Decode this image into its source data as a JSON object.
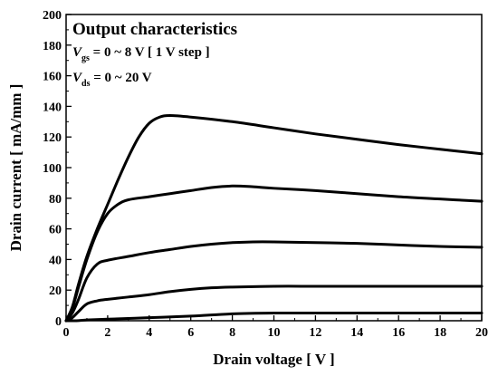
{
  "chart_data": {
    "type": "line",
    "title": "Output characteristics",
    "annotations": {
      "vgs_symbol": "V",
      "vgs_sub": "gs",
      "vgs_text": " = 0 ~ 8 V [ 1 V step ]",
      "vds_symbol": "V",
      "vds_sub": "ds",
      "vds_text": " = 0 ~ 20 V"
    },
    "xlabel": "Drain voltage [ V ]",
    "ylabel": "Drain current [ mA/mm ]",
    "xlim": [
      0,
      20
    ],
    "ylim": [
      0,
      200
    ],
    "xticks": [
      0,
      2,
      4,
      6,
      8,
      10,
      12,
      14,
      16,
      18,
      20
    ],
    "yticks": [
      0,
      20,
      40,
      60,
      80,
      100,
      120,
      140,
      160,
      180,
      200
    ],
    "grid": false,
    "series": [
      {
        "x": [
          0,
          0.5,
          1,
          2,
          4,
          6,
          8,
          10,
          12,
          14,
          16,
          18,
          20
        ],
        "y": [
          0,
          0,
          0.5,
          1,
          2,
          3,
          4.5,
          5,
          5,
          5,
          5,
          5,
          5
        ]
      },
      {
        "x": [
          0,
          0.3,
          0.6,
          1,
          1.5,
          2,
          3,
          4,
          5,
          6,
          7,
          8,
          10,
          12,
          14,
          16,
          18,
          20
        ],
        "y": [
          0,
          2,
          6,
          11,
          13,
          14,
          15.5,
          17,
          19,
          20.5,
          21.5,
          22,
          22.5,
          22.5,
          22.5,
          22.5,
          22.5,
          22.5
        ]
      },
      {
        "x": [
          0,
          0.3,
          0.6,
          1,
          1.5,
          2,
          3,
          4,
          5,
          6,
          7,
          8,
          9,
          10,
          12,
          14,
          16,
          18,
          20
        ],
        "y": [
          0,
          5,
          14,
          28,
          37,
          39.5,
          42,
          44.5,
          46.5,
          48.5,
          50,
          51,
          51.5,
          51.5,
          51,
          50.5,
          49.5,
          48.5,
          48
        ]
      },
      {
        "x": [
          0,
          0.3,
          0.6,
          1,
          1.5,
          2,
          2.5,
          3,
          4,
          5,
          6,
          7,
          8,
          9,
          10,
          12,
          14,
          16,
          18,
          20
        ],
        "y": [
          0,
          8,
          22,
          40,
          58,
          70,
          76,
          79,
          81,
          83,
          85,
          87,
          88,
          87.5,
          86.5,
          85,
          83,
          81,
          79.5,
          78
        ]
      },
      {
        "x": [
          0,
          0.3,
          0.6,
          1,
          1.5,
          2,
          2.5,
          3,
          3.5,
          4,
          4.5,
          5,
          6,
          8,
          10,
          12,
          14,
          16,
          18,
          20
        ],
        "y": [
          0,
          9,
          24,
          42,
          60,
          76,
          92,
          107,
          120,
          129,
          133,
          134,
          133,
          130,
          126,
          122,
          118.5,
          115,
          112,
          109
        ]
      }
    ]
  }
}
